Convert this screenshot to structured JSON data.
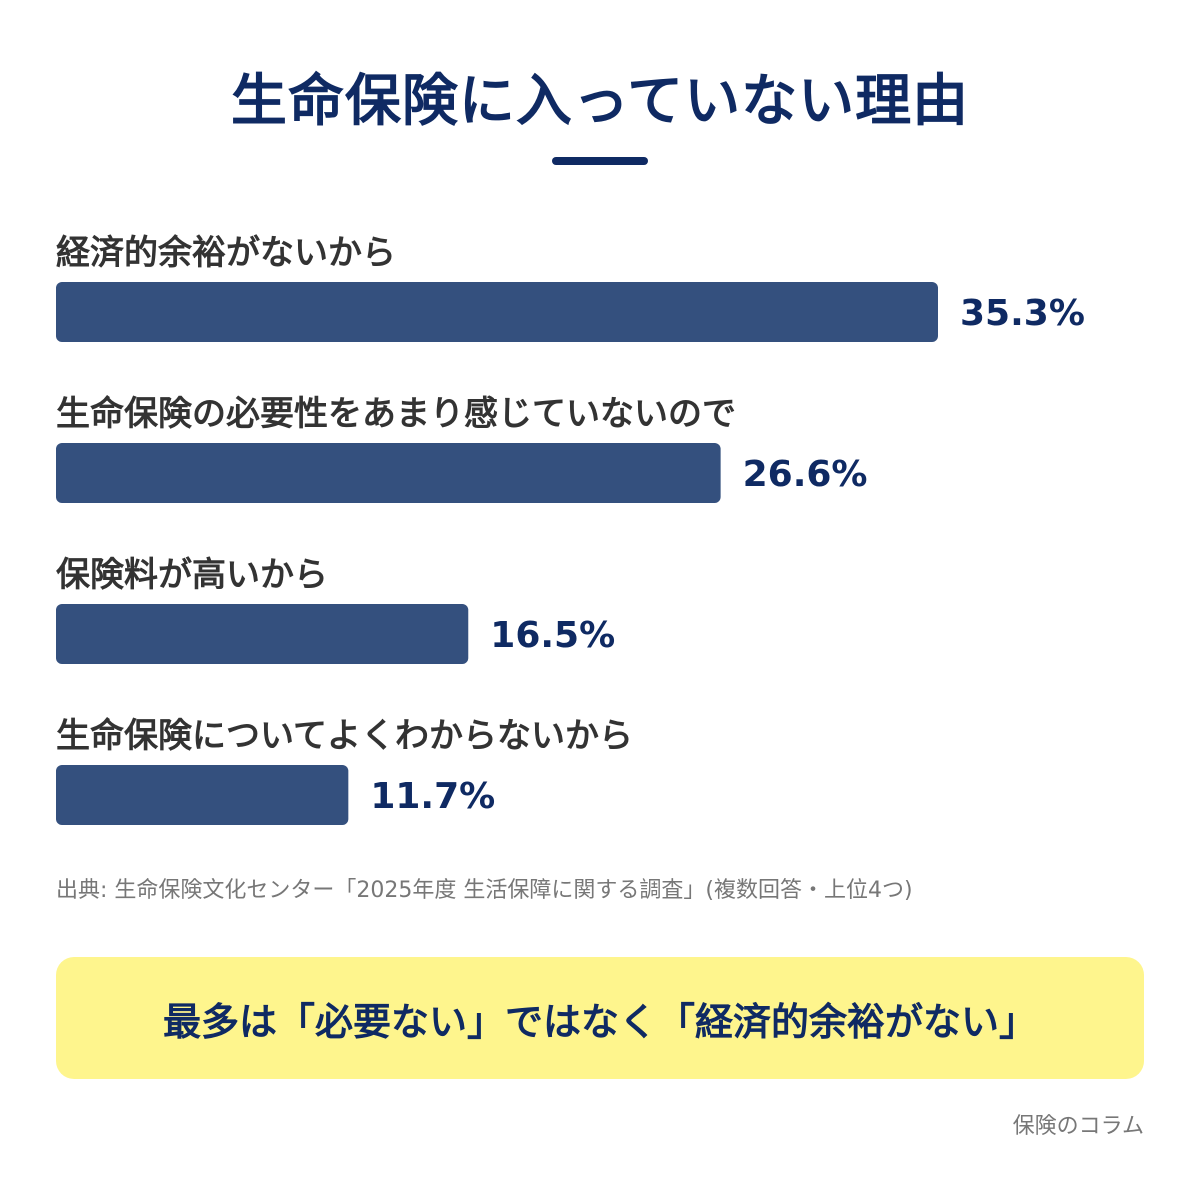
{
  "header": {
    "title": "生命保険に入っていない理由"
  },
  "chart_data": {
    "type": "bar",
    "orientation": "horizontal",
    "categories": [
      "経済的余裕がないから",
      "生命保険の必要性をあまり感じていないので",
      "保険料が高いから",
      "生命保険についてよくわからないから"
    ],
    "values": [
      35.3,
      26.6,
      16.5,
      11.7
    ],
    "value_labels": [
      "35.3%",
      "26.6%",
      "16.5%",
      "11.7%"
    ],
    "unit": "%",
    "xlim": [
      0,
      100
    ],
    "bar_color": "#34507e",
    "grid": false,
    "legend": "none"
  },
  "footer": {
    "source": "出典: 生命保険文化センター「2025年度 生活保障に関する調査」(複数回答・上位4つ)",
    "callout": "最多は「必要ない」ではなく「経済的余裕がない」",
    "brand": "保険のコラム"
  },
  "colors": {
    "title": "#0f2a63",
    "bar": "#34507e",
    "callout_bg": "#fef58d",
    "muted_text": "#777777"
  }
}
